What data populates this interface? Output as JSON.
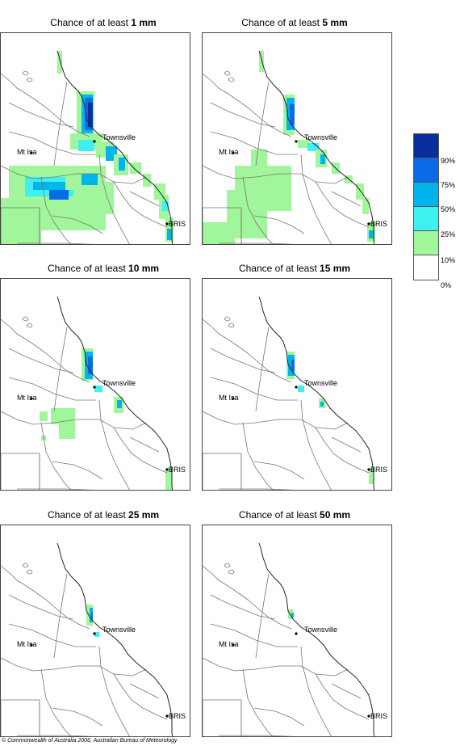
{
  "panels": [
    {
      "prefix": "Chance of at least ",
      "amount": "1 mm"
    },
    {
      "prefix": "Chance of at least ",
      "amount": "5 mm"
    },
    {
      "prefix": "Chance of at least ",
      "amount": "10 mm"
    },
    {
      "prefix": "Chance of at least ",
      "amount": "15 mm"
    },
    {
      "prefix": "Chance of at least ",
      "amount": "25 mm"
    },
    {
      "prefix": "Chance of at least ",
      "amount": "50 mm"
    }
  ],
  "places": {
    "townsville": "Townsville",
    "mt_isa": "Mt Isa",
    "bris": "BRIS"
  },
  "legend": {
    "labels": [
      "90%",
      "75%",
      "50%",
      "25%",
      "10%",
      "0%"
    ],
    "colors": [
      "#0a2f9c",
      "#0a6be6",
      "#00b4ec",
      "#3ff0f0",
      "#a1f59a",
      "#ffffff"
    ]
  },
  "copyright": "© Commonwealth of Australia 2006, Australian Bureau of Meteorology"
}
